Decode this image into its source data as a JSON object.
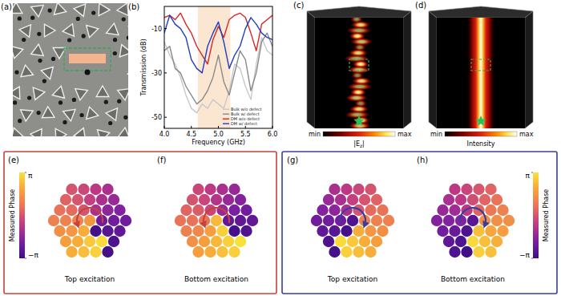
{
  "photo": {
    "label": "(a)"
  },
  "chart_data": {
    "type": "line",
    "title": "(b)",
    "xlabel": "Frequency (GHz)",
    "ylabel": "Transmission (dB)",
    "x": [
      4.0,
      4.1,
      4.2,
      4.3,
      4.4,
      4.5,
      4.6,
      4.7,
      4.8,
      4.9,
      5.0,
      5.1,
      5.2,
      5.3,
      5.4,
      5.5,
      5.6,
      5.7,
      5.8,
      5.9,
      6.0
    ],
    "xlim": [
      4,
      6
    ],
    "xticks": [
      {
        "value": 4,
        "label": "4.0"
      },
      {
        "value": 4.5,
        "label": "4.5"
      },
      {
        "value": 5,
        "label": "5.0"
      },
      {
        "value": 5.5,
        "label": "5.5"
      },
      {
        "value": 6,
        "label": "6.0"
      }
    ],
    "ylim": [
      -55,
      0
    ],
    "yticks": [
      -10,
      -30,
      -50
    ],
    "highlight_range": [
      4.62,
      5.22
    ],
    "legend": "lower right",
    "series": [
      {
        "name": "Bulk w/o defect",
        "color": "#c8c8c8",
        "values": [
          -16,
          -22,
          -26,
          -32,
          -40,
          -46,
          -48,
          -44,
          -46,
          -42,
          -44,
          -46,
          -38,
          -26,
          -28,
          -36,
          -42,
          -26,
          -14,
          -20,
          -22
        ]
      },
      {
        "name": "Bulk w/ defect",
        "color": "#8a8a8a",
        "values": [
          -20,
          -18,
          -28,
          -30,
          -36,
          -40,
          -44,
          -42,
          -38,
          -32,
          -22,
          -34,
          -40,
          -30,
          -20,
          -24,
          -38,
          -30,
          -16,
          -12,
          -18
        ]
      },
      {
        "name": "DM w/o defect",
        "color": "#d62728",
        "values": [
          -5,
          -4,
          -6,
          -3,
          -8,
          -12,
          -18,
          -22,
          -26,
          -15,
          -9,
          -14,
          -6,
          -4,
          -3,
          -5,
          -12,
          -20,
          -8,
          -6,
          -4
        ]
      },
      {
        "name": "DM w/ defect",
        "color": "#1f3fbf",
        "values": [
          -12,
          -4,
          -8,
          -10,
          -14,
          -24,
          -28,
          -30,
          -18,
          -12,
          -7,
          -16,
          -28,
          -22,
          -18,
          -10,
          -5,
          -8,
          -12,
          -14,
          -15
        ]
      }
    ]
  },
  "field_maps": [
    {
      "label": "(c)",
      "quantity": [
        "|E",
        "z",
        "|"
      ],
      "scale_min": "min",
      "scale_max": "max"
    },
    {
      "label": "(d)",
      "quantity": [
        "Intensity"
      ],
      "scale_min": "min",
      "scale_max": "max"
    }
  ],
  "phase_maps": [
    {
      "frame_color": "#c8413b",
      "colorbar_side": "left",
      "colorbar": {
        "label": "Measured Phase",
        "range": [
          -3.1416,
          3.1416
        ],
        "ticks": [
          {
            "value": 3.1416,
            "label": "π"
          },
          {
            "value": -3.1416,
            "label": "−π"
          }
        ]
      },
      "panels": [
        {
          "label": "(e)",
          "caption": "Top excitation",
          "phases": [
            0.0,
            -0.33,
            -0.71,
            -1.05,
            0.33,
            0.0,
            -0.52,
            -1.05,
            -1.38,
            0.71,
            0.52,
            0.0,
            -1.05,
            -1.57,
            -1.76,
            1.05,
            1.05,
            1.05,
            1.6,
            -2.09,
            -2.09,
            -2.09,
            1.38,
            1.57,
            2.09,
            -3.0,
            -2.62,
            -2.43,
            1.76,
            2.09,
            2.62,
            3.0,
            -2.81,
            2.09,
            2.43,
            2.81,
            -3.0
          ]
        },
        {
          "label": "(f)",
          "caption": "Bottom excitation",
          "phases": [
            -0.35,
            -0.68,
            -1.06,
            -1.4,
            -0.02,
            -0.35,
            -0.87,
            -1.4,
            -1.73,
            0.36,
            0.17,
            -0.35,
            -1.4,
            -1.92,
            -2.11,
            0.7,
            0.7,
            0.7,
            2.3,
            -2.44,
            -2.44,
            -2.44,
            1.03,
            1.22,
            1.75,
            2.79,
            -2.97,
            -2.78,
            1.41,
            1.75,
            2.27,
            2.79,
            3.13,
            1.75,
            2.08,
            2.46,
            2.79
          ]
        }
      ]
    },
    {
      "frame_color": "#3a3f9a",
      "colorbar_side": "right",
      "colorbar": {
        "label": "Measured Phase",
        "range": [
          -3.1416,
          3.1416
        ],
        "ticks": [
          {
            "value": 3.1416,
            "label": "π"
          },
          {
            "value": -3.1416,
            "label": "−π"
          }
        ]
      },
      "panels": [
        {
          "label": "(g)",
          "caption": "Top excitation",
          "phases": [
            -1.05,
            -0.71,
            -0.33,
            0.0,
            -1.38,
            -1.05,
            -0.52,
            0.0,
            0.33,
            -1.76,
            -1.57,
            -1.05,
            0.0,
            0.52,
            0.71,
            -2.09,
            -2.09,
            -2.09,
            -2.8,
            1.05,
            1.05,
            1.05,
            -2.43,
            -2.62,
            -3.0,
            2.09,
            1.57,
            1.38,
            -2.81,
            3.0,
            2.62,
            2.09,
            1.76,
            -3.0,
            2.81,
            2.43,
            2.09
          ]
        },
        {
          "label": "(h)",
          "caption": "Bottom excitation",
          "phases": [
            -0.7,
            -0.36,
            0.02,
            0.35,
            -1.03,
            -0.7,
            -0.17,
            0.35,
            0.68,
            -1.41,
            -1.22,
            -0.7,
            0.35,
            0.87,
            1.06,
            -1.75,
            -1.75,
            -1.75,
            -2.6,
            1.4,
            1.4,
            1.4,
            -2.08,
            -2.27,
            -2.79,
            2.44,
            1.92,
            1.73,
            -2.46,
            -2.79,
            2.97,
            2.44,
            2.11,
            -2.79,
            -3.13,
            2.78,
            2.44
          ]
        }
      ]
    }
  ]
}
